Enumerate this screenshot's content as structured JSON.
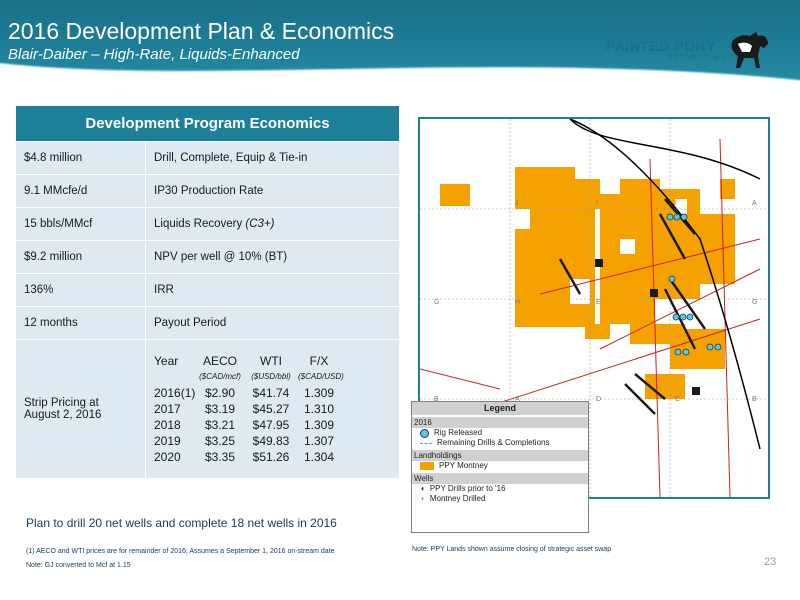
{
  "header": {
    "title": "2016 Development Plan & Economics",
    "subtitle": "Blair-Daiber – High-Rate, Liquids-Enhanced"
  },
  "logo": {
    "name": "PAINTED PONY",
    "sub": "PETROLEUM LTD."
  },
  "table": {
    "heading": "Development Program Economics",
    "rows": [
      {
        "value": "$4.8 million",
        "label": "Drill, Complete, Equip & Tie-in"
      },
      {
        "value": "9.1 MMcfe/d",
        "label": "IP30 Production Rate"
      },
      {
        "value": "15 bbls/MMcf",
        "label": "Liquids Recovery",
        "label_note": "(C3+)"
      },
      {
        "value": "$9.2 million",
        "label": "NPV per well @ 10% (BT)"
      },
      {
        "value": "136%",
        "label": "IRR"
      },
      {
        "value": "12 months",
        "label": "Payout Period"
      }
    ],
    "strip": {
      "label": "Strip Pricing at August 2, 2016",
      "headers": [
        "Year",
        "AECO",
        "WTI",
        "F/X"
      ],
      "units": [
        "",
        "($CAD/mcf)",
        "($USD/bbl)",
        "($CAD/USD)"
      ],
      "rows": [
        [
          "2016(1)",
          "$2.90",
          "$41.74",
          "1.309"
        ],
        [
          "2017",
          "$3.19",
          "$45.27",
          "1.310"
        ],
        [
          "2018",
          "$3.21",
          "$47.95",
          "1.309"
        ],
        [
          "2019",
          "$3.25",
          "$49.83",
          "1.307"
        ],
        [
          "2020",
          "$3.35",
          "$51.26",
          "1.304"
        ]
      ]
    }
  },
  "plan_text": "Plan to drill 20 net wells and complete 18 net wells in 2016",
  "footnotes": {
    "fn1": "(1) AECO and WTI prices are for remainder of 2016; Assumes a September 1, 2016 on-stream date",
    "fn2": "Note: GJ converted to Mcf at 1.15"
  },
  "map_note": "Note: PPY Lands shown assume closing of strategic asset swap",
  "page_number": "23",
  "legend": {
    "title": "Legend",
    "year": "2016",
    "rig_released": "Rig Released",
    "remaining": "Remaining Drills & Completions",
    "landholdings": "Landholdings",
    "ppy_montney": "PPY Montney",
    "wells": "Wells",
    "ppy_drills": "PPY Drills prior to '16",
    "montney_drilled": "Montney Drilled"
  },
  "map_labels": [
    "G",
    "H",
    "E",
    "G",
    "B",
    "A",
    "D",
    "C",
    "B",
    "J",
    "I",
    "I",
    "A"
  ],
  "colors": {
    "accent": "#1e7f98",
    "land": "#f5a100",
    "rig": "#5ac8e0",
    "table_bg": "#dfe9f2"
  }
}
